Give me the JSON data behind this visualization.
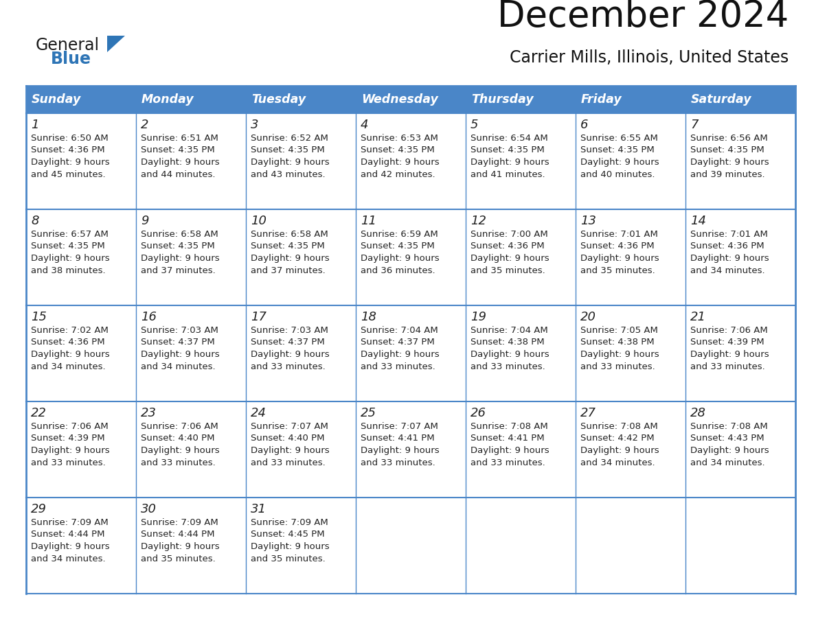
{
  "title": "December 2024",
  "subtitle": "Carrier Mills, Illinois, United States",
  "header_color": "#4a86c8",
  "header_text_color": "#ffffff",
  "border_color": "#4a86c8",
  "cell_border_color": "#a0a0a0",
  "text_color": "#222222",
  "days_of_week": [
    "Sunday",
    "Monday",
    "Tuesday",
    "Wednesday",
    "Thursday",
    "Friday",
    "Saturday"
  ],
  "calendar_data": [
    [
      {
        "day": 1,
        "sunrise": "6:50 AM",
        "sunset": "4:36 PM",
        "daylight_line1": "Daylight: 9 hours",
        "daylight_line2": "and 45 minutes."
      },
      {
        "day": 2,
        "sunrise": "6:51 AM",
        "sunset": "4:35 PM",
        "daylight_line1": "Daylight: 9 hours",
        "daylight_line2": "and 44 minutes."
      },
      {
        "day": 3,
        "sunrise": "6:52 AM",
        "sunset": "4:35 PM",
        "daylight_line1": "Daylight: 9 hours",
        "daylight_line2": "and 43 minutes."
      },
      {
        "day": 4,
        "sunrise": "6:53 AM",
        "sunset": "4:35 PM",
        "daylight_line1": "Daylight: 9 hours",
        "daylight_line2": "and 42 minutes."
      },
      {
        "day": 5,
        "sunrise": "6:54 AM",
        "sunset": "4:35 PM",
        "daylight_line1": "Daylight: 9 hours",
        "daylight_line2": "and 41 minutes."
      },
      {
        "day": 6,
        "sunrise": "6:55 AM",
        "sunset": "4:35 PM",
        "daylight_line1": "Daylight: 9 hours",
        "daylight_line2": "and 40 minutes."
      },
      {
        "day": 7,
        "sunrise": "6:56 AM",
        "sunset": "4:35 PM",
        "daylight_line1": "Daylight: 9 hours",
        "daylight_line2": "and 39 minutes."
      }
    ],
    [
      {
        "day": 8,
        "sunrise": "6:57 AM",
        "sunset": "4:35 PM",
        "daylight_line1": "Daylight: 9 hours",
        "daylight_line2": "and 38 minutes."
      },
      {
        "day": 9,
        "sunrise": "6:58 AM",
        "sunset": "4:35 PM",
        "daylight_line1": "Daylight: 9 hours",
        "daylight_line2": "and 37 minutes."
      },
      {
        "day": 10,
        "sunrise": "6:58 AM",
        "sunset": "4:35 PM",
        "daylight_line1": "Daylight: 9 hours",
        "daylight_line2": "and 37 minutes."
      },
      {
        "day": 11,
        "sunrise": "6:59 AM",
        "sunset": "4:35 PM",
        "daylight_line1": "Daylight: 9 hours",
        "daylight_line2": "and 36 minutes."
      },
      {
        "day": 12,
        "sunrise": "7:00 AM",
        "sunset": "4:36 PM",
        "daylight_line1": "Daylight: 9 hours",
        "daylight_line2": "and 35 minutes."
      },
      {
        "day": 13,
        "sunrise": "7:01 AM",
        "sunset": "4:36 PM",
        "daylight_line1": "Daylight: 9 hours",
        "daylight_line2": "and 35 minutes."
      },
      {
        "day": 14,
        "sunrise": "7:01 AM",
        "sunset": "4:36 PM",
        "daylight_line1": "Daylight: 9 hours",
        "daylight_line2": "and 34 minutes."
      }
    ],
    [
      {
        "day": 15,
        "sunrise": "7:02 AM",
        "sunset": "4:36 PM",
        "daylight_line1": "Daylight: 9 hours",
        "daylight_line2": "and 34 minutes."
      },
      {
        "day": 16,
        "sunrise": "7:03 AM",
        "sunset": "4:37 PM",
        "daylight_line1": "Daylight: 9 hours",
        "daylight_line2": "and 34 minutes."
      },
      {
        "day": 17,
        "sunrise": "7:03 AM",
        "sunset": "4:37 PM",
        "daylight_line1": "Daylight: 9 hours",
        "daylight_line2": "and 33 minutes."
      },
      {
        "day": 18,
        "sunrise": "7:04 AM",
        "sunset": "4:37 PM",
        "daylight_line1": "Daylight: 9 hours",
        "daylight_line2": "and 33 minutes."
      },
      {
        "day": 19,
        "sunrise": "7:04 AM",
        "sunset": "4:38 PM",
        "daylight_line1": "Daylight: 9 hours",
        "daylight_line2": "and 33 minutes."
      },
      {
        "day": 20,
        "sunrise": "7:05 AM",
        "sunset": "4:38 PM",
        "daylight_line1": "Daylight: 9 hours",
        "daylight_line2": "and 33 minutes."
      },
      {
        "day": 21,
        "sunrise": "7:06 AM",
        "sunset": "4:39 PM",
        "daylight_line1": "Daylight: 9 hours",
        "daylight_line2": "and 33 minutes."
      }
    ],
    [
      {
        "day": 22,
        "sunrise": "7:06 AM",
        "sunset": "4:39 PM",
        "daylight_line1": "Daylight: 9 hours",
        "daylight_line2": "and 33 minutes."
      },
      {
        "day": 23,
        "sunrise": "7:06 AM",
        "sunset": "4:40 PM",
        "daylight_line1": "Daylight: 9 hours",
        "daylight_line2": "and 33 minutes."
      },
      {
        "day": 24,
        "sunrise": "7:07 AM",
        "sunset": "4:40 PM",
        "daylight_line1": "Daylight: 9 hours",
        "daylight_line2": "and 33 minutes."
      },
      {
        "day": 25,
        "sunrise": "7:07 AM",
        "sunset": "4:41 PM",
        "daylight_line1": "Daylight: 9 hours",
        "daylight_line2": "and 33 minutes."
      },
      {
        "day": 26,
        "sunrise": "7:08 AM",
        "sunset": "4:41 PM",
        "daylight_line1": "Daylight: 9 hours",
        "daylight_line2": "and 33 minutes."
      },
      {
        "day": 27,
        "sunrise": "7:08 AM",
        "sunset": "4:42 PM",
        "daylight_line1": "Daylight: 9 hours",
        "daylight_line2": "and 34 minutes."
      },
      {
        "day": 28,
        "sunrise": "7:08 AM",
        "sunset": "4:43 PM",
        "daylight_line1": "Daylight: 9 hours",
        "daylight_line2": "and 34 minutes."
      }
    ],
    [
      {
        "day": 29,
        "sunrise": "7:09 AM",
        "sunset": "4:44 PM",
        "daylight_line1": "Daylight: 9 hours",
        "daylight_line2": "and 34 minutes."
      },
      {
        "day": 30,
        "sunrise": "7:09 AM",
        "sunset": "4:44 PM",
        "daylight_line1": "Daylight: 9 hours",
        "daylight_line2": "and 35 minutes."
      },
      {
        "day": 31,
        "sunrise": "7:09 AM",
        "sunset": "4:45 PM",
        "daylight_line1": "Daylight: 9 hours",
        "daylight_line2": "and 35 minutes."
      },
      null,
      null,
      null,
      null
    ]
  ],
  "logo_text_general": "General",
  "logo_text_blue": "Blue",
  "logo_triangle_color": "#2e75b6",
  "logo_general_color": "#1a1a1a"
}
